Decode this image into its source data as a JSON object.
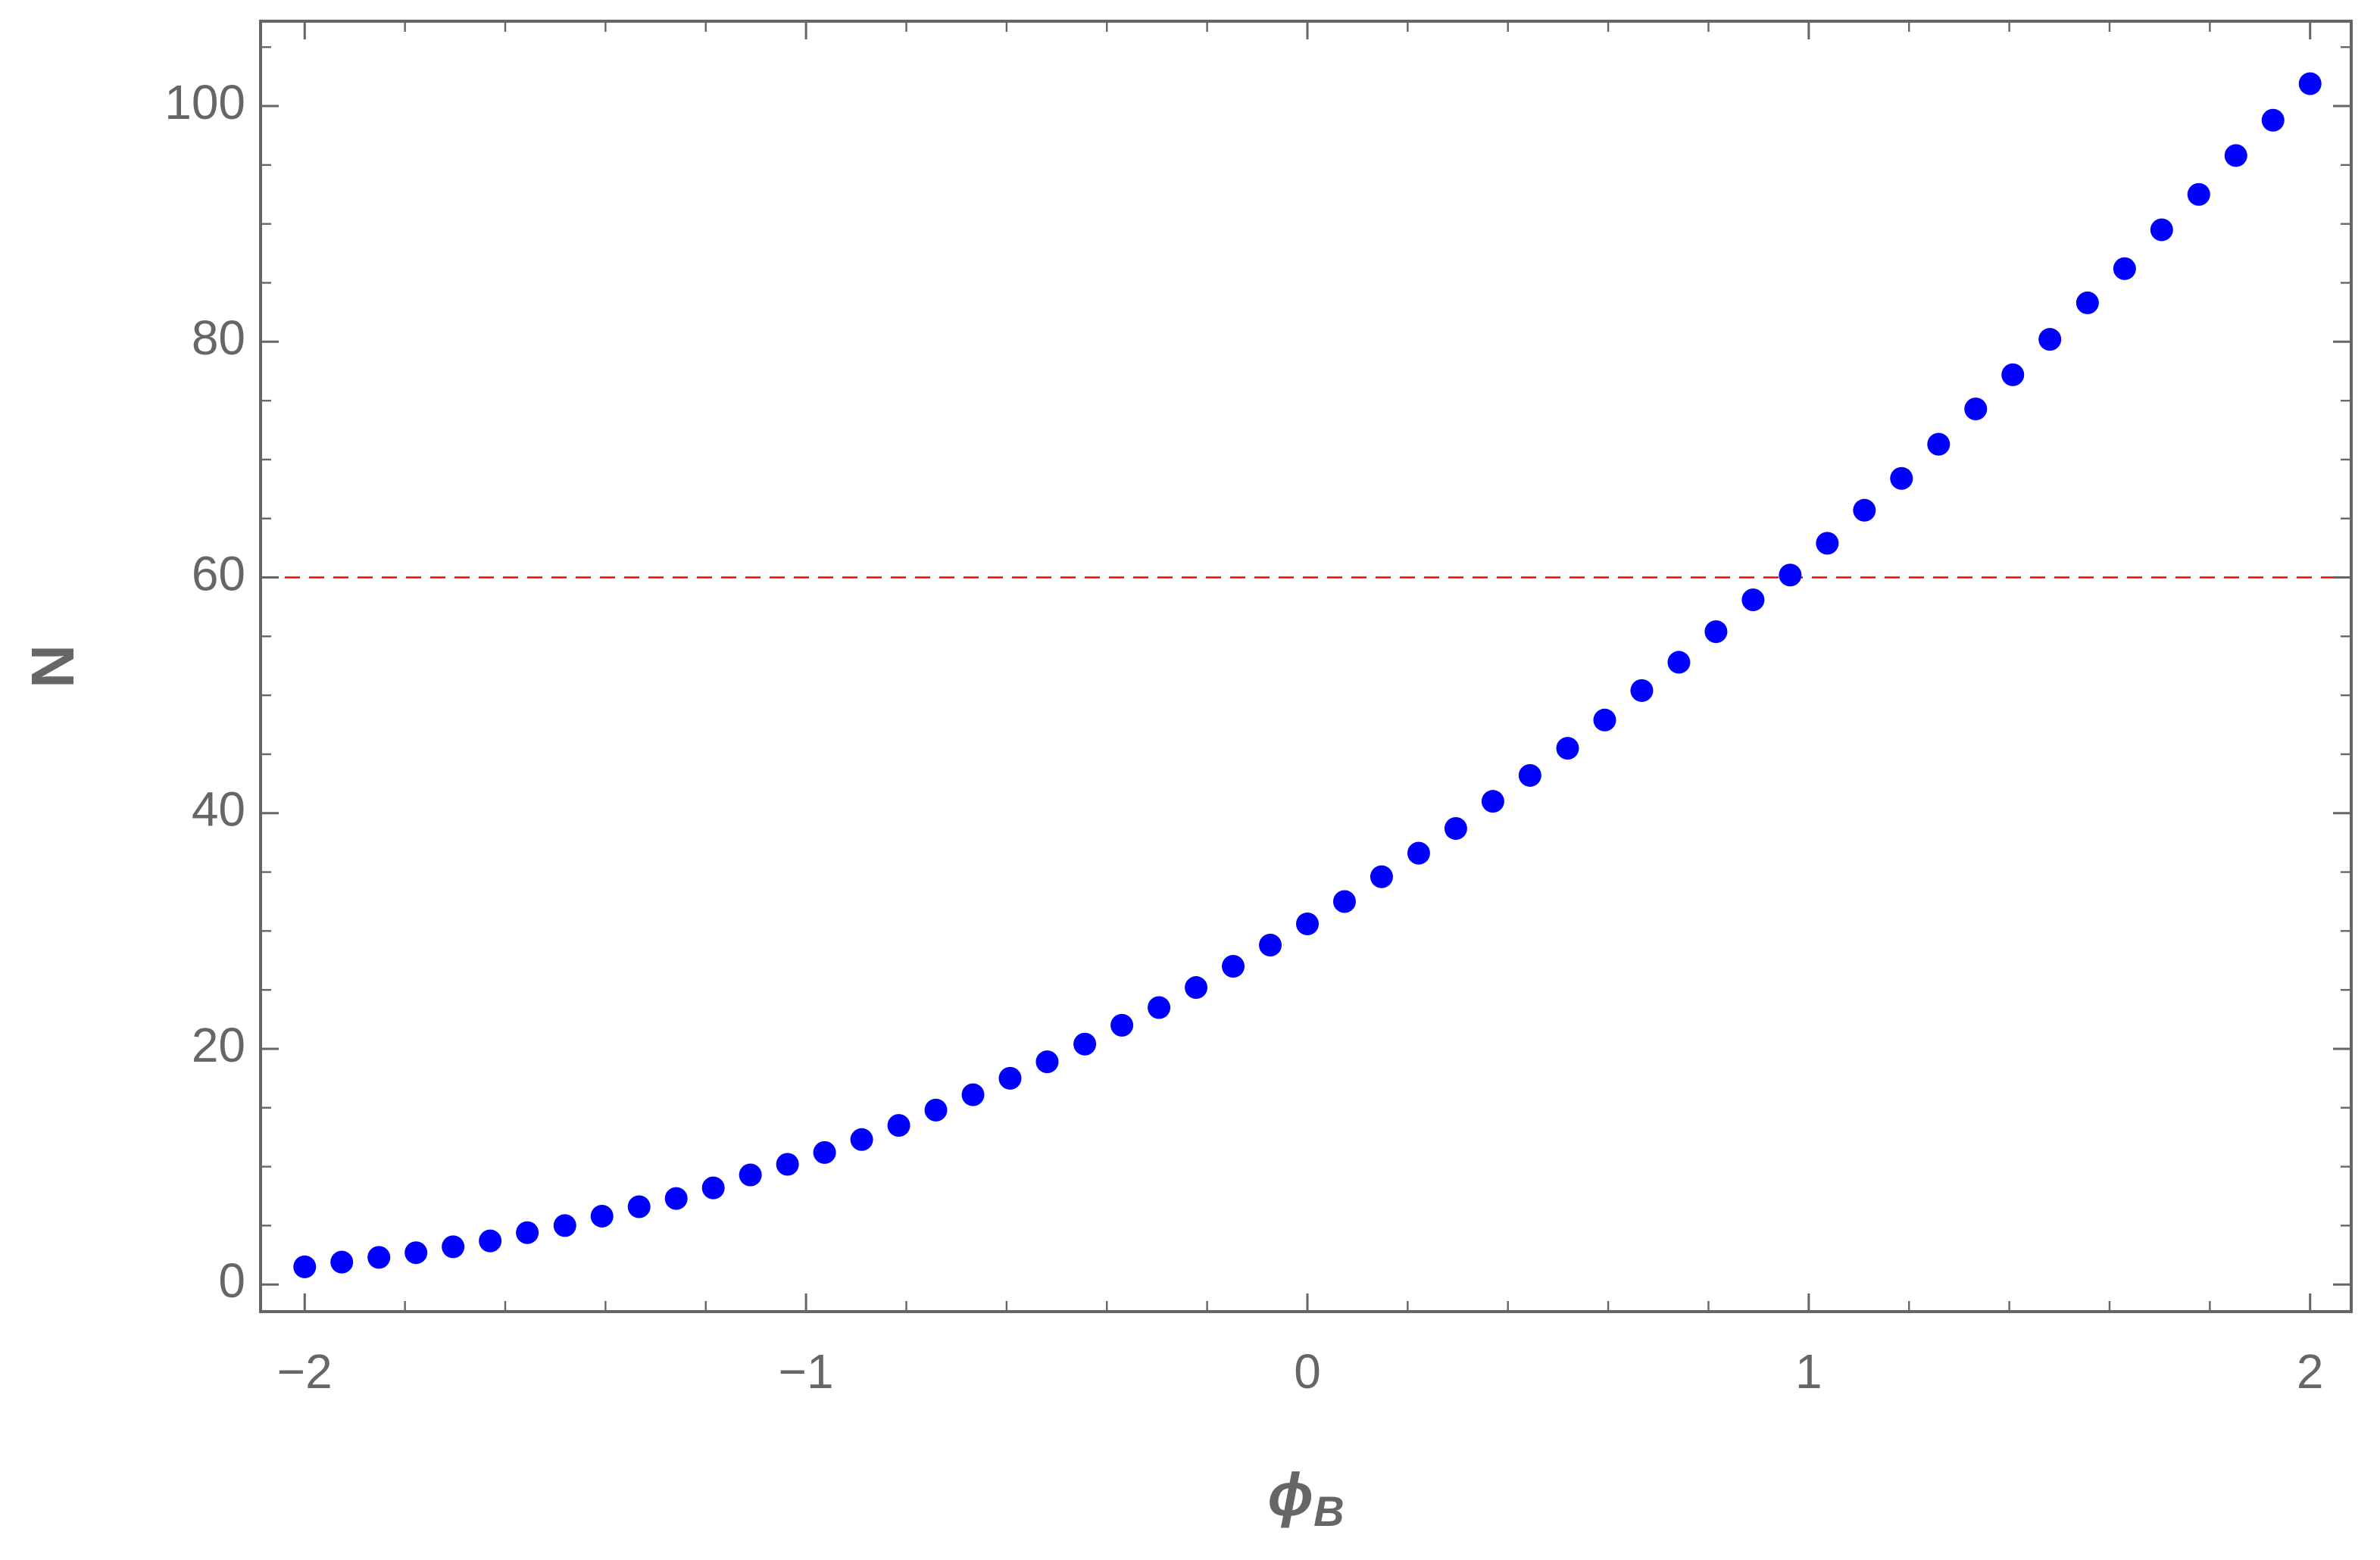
{
  "chart_data": {
    "type": "scatter",
    "xlabel": {
      "text": "ϕ",
      "subscript": "B"
    },
    "ylabel": "N",
    "x": [
      -2,
      -1.926,
      -1.852,
      -1.778,
      -1.704,
      -1.63,
      -1.556,
      -1.481,
      -1.407,
      -1.333,
      -1.259,
      -1.185,
      -1.111,
      -1.037,
      -0.963,
      -0.889,
      -0.815,
      -0.741,
      -0.667,
      -0.593,
      -0.519,
      -0.444,
      -0.37,
      -0.296,
      -0.222,
      -0.148,
      -0.074,
      0,
      0.074,
      0.148,
      0.222,
      0.296,
      0.37,
      0.444,
      0.519,
      0.593,
      0.667,
      0.741,
      0.815,
      0.889,
      0.963,
      1.037,
      1.111,
      1.185,
      1.259,
      1.333,
      1.407,
      1.481,
      1.556,
      1.63,
      1.704,
      1.778,
      1.852,
      1.926,
      2
    ],
    "series": [
      {
        "color": "#0000ff",
        "values": [
          1.5,
          1.9,
          2.3,
          2.7,
          3.2,
          3.7,
          4.4,
          5.0,
          5.8,
          6.6,
          7.3,
          8.2,
          9.3,
          10.2,
          11.2,
          12.3,
          13.5,
          14.8,
          16.1,
          17.5,
          18.9,
          20.4,
          22.0,
          23.5,
          25.2,
          27.0,
          28.8,
          30.6,
          32.5,
          34.6,
          36.6,
          38.7,
          41.0,
          43.2,
          45.5,
          47.9,
          50.4,
          52.8,
          55.4,
          58.1,
          60.2,
          62.9,
          65.7,
          68.4,
          71.3,
          74.3,
          77.2,
          80.2,
          83.3,
          86.2,
          89.5,
          92.5,
          95.8,
          98.8,
          101.9
        ]
      }
    ],
    "hline": {
      "value": 60,
      "color": "#ff0000",
      "dashed": true
    },
    "xlim": [
      -2.088,
      2.082
    ],
    "ylim": [
      -2.3,
      107.2
    ],
    "xticks": [
      {
        "value": -2,
        "label": "−2"
      },
      {
        "value": -1,
        "label": "−1"
      },
      0,
      1,
      2
    ],
    "yticks": [
      0,
      20,
      40,
      60,
      80,
      100
    ],
    "xminorticks": [
      -1.8,
      -1.6,
      -1.4,
      -1.2,
      -0.8,
      -0.6,
      -0.4,
      -0.2,
      0.2,
      0.4,
      0.6,
      0.8,
      1.2,
      1.4,
      1.6,
      1.8
    ],
    "yminorticks": [
      5,
      10,
      15,
      25,
      30,
      35,
      45,
      50,
      55,
      65,
      70,
      75,
      85,
      90,
      95,
      105
    ],
    "frame_color": "#666666"
  }
}
